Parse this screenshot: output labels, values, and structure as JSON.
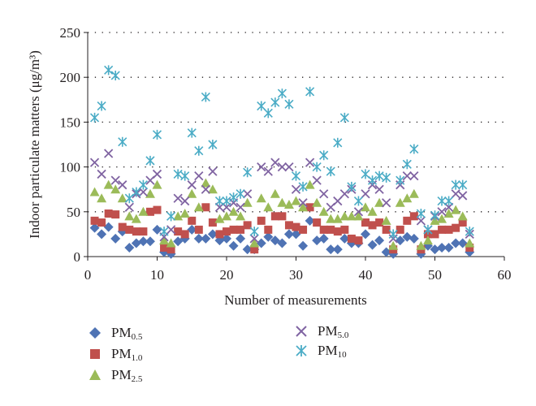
{
  "chart_data": {
    "type": "scatter",
    "xlabel": "Number of measurements",
    "ylabel": "Indoor particulate matters (μg/m³)",
    "xlim": [
      0,
      60
    ],
    "ylim": [
      0,
      250
    ],
    "xticks": [
      "0",
      "10",
      "20",
      "30",
      "40",
      "50",
      "60"
    ],
    "yticks": [
      "0",
      "50",
      "100",
      "150",
      "200",
      "250"
    ],
    "grid": "horizontal dotted",
    "legend_position": "bottom",
    "series": [
      {
        "name": "PM0.5",
        "label_base": "PM",
        "label_sub": "0.5",
        "marker": "diamond",
        "color": "#4f73b4",
        "x": [
          1,
          2,
          3,
          4,
          5,
          6,
          7,
          8,
          9,
          10,
          11,
          12,
          13,
          14,
          15,
          16,
          17,
          18,
          19,
          20,
          21,
          22,
          23,
          24,
          25,
          26,
          27,
          28,
          29,
          30,
          31,
          32,
          33,
          34,
          35,
          36,
          37,
          38,
          39,
          40,
          41,
          42,
          43,
          44,
          45,
          46,
          47,
          48,
          49,
          50,
          51,
          52,
          53,
          54,
          55
        ],
        "y": [
          32,
          25,
          33,
          20,
          28,
          10,
          15,
          17,
          17,
          30,
          5,
          3,
          17,
          20,
          30,
          20,
          20,
          25,
          18,
          20,
          12,
          20,
          8,
          8,
          15,
          22,
          18,
          15,
          25,
          25,
          12,
          40,
          18,
          20,
          8,
          8,
          20,
          15,
          15,
          25,
          13,
          18,
          5,
          3,
          18,
          22,
          20,
          3,
          12,
          8,
          10,
          10,
          15,
          15,
          5
        ]
      },
      {
        "name": "PM1.0",
        "label_base": "PM",
        "label_sub": "1.0",
        "marker": "square",
        "color": "#c0504d",
        "x": [
          1,
          2,
          3,
          4,
          5,
          6,
          7,
          8,
          9,
          10,
          11,
          12,
          13,
          14,
          15,
          16,
          17,
          18,
          19,
          20,
          21,
          22,
          23,
          24,
          25,
          26,
          27,
          28,
          29,
          30,
          31,
          32,
          33,
          34,
          35,
          36,
          37,
          38,
          39,
          40,
          41,
          42,
          43,
          44,
          45,
          46,
          47,
          48,
          49,
          50,
          51,
          52,
          53,
          54,
          55
        ],
        "y": [
          40,
          38,
          48,
          47,
          33,
          30,
          28,
          28,
          50,
          52,
          10,
          8,
          28,
          25,
          40,
          30,
          55,
          38,
          25,
          28,
          30,
          30,
          35,
          8,
          40,
          30,
          45,
          45,
          35,
          33,
          30,
          55,
          38,
          30,
          30,
          28,
          30,
          20,
          18,
          38,
          35,
          38,
          30,
          8,
          30,
          40,
          45,
          8,
          25,
          25,
          30,
          30,
          32,
          38,
          10
        ]
      },
      {
        "name": "PM2.5",
        "label_base": "PM",
        "label_sub": "2.5",
        "marker": "triangle",
        "color": "#9bbb59",
        "x": [
          1,
          2,
          3,
          4,
          5,
          6,
          7,
          8,
          9,
          10,
          11,
          12,
          13,
          14,
          15,
          16,
          17,
          18,
          19,
          20,
          21,
          22,
          23,
          24,
          25,
          26,
          27,
          28,
          29,
          30,
          31,
          32,
          33,
          34,
          35,
          36,
          37,
          38,
          39,
          40,
          41,
          42,
          43,
          44,
          45,
          46,
          47,
          48,
          49,
          50,
          51,
          52,
          53,
          54,
          55
        ],
        "y": [
          72,
          65,
          80,
          75,
          65,
          45,
          42,
          50,
          70,
          80,
          18,
          15,
          45,
          48,
          70,
          55,
          82,
          75,
          42,
          45,
          50,
          45,
          60,
          15,
          65,
          55,
          70,
          60,
          58,
          62,
          55,
          80,
          60,
          50,
          42,
          42,
          45,
          45,
          45,
          55,
          50,
          60,
          40,
          12,
          60,
          65,
          70,
          12,
          18,
          40,
          42,
          48,
          52,
          45,
          15
        ]
      },
      {
        "name": "PM5.0",
        "label_base": "PM",
        "label_sub": "5.0",
        "marker": "x",
        "color": "#8064a2",
        "x": [
          1,
          2,
          3,
          4,
          5,
          6,
          7,
          8,
          9,
          10,
          11,
          12,
          13,
          14,
          15,
          16,
          17,
          18,
          19,
          20,
          21,
          22,
          23,
          24,
          25,
          26,
          27,
          28,
          29,
          30,
          31,
          32,
          33,
          34,
          35,
          36,
          37,
          38,
          39,
          40,
          41,
          42,
          43,
          44,
          45,
          46,
          47,
          48,
          49,
          50,
          51,
          52,
          53,
          54,
          55
        ],
        "y": [
          105,
          92,
          115,
          85,
          80,
          55,
          70,
          72,
          85,
          92,
          22,
          30,
          65,
          62,
          80,
          90,
          75,
          95,
          55,
          55,
          60,
          55,
          70,
          20,
          100,
          95,
          105,
          100,
          100,
          75,
          60,
          105,
          85,
          70,
          55,
          62,
          70,
          75,
          50,
          70,
          80,
          75,
          60,
          20,
          80,
          90,
          90,
          40,
          30,
          45,
          50,
          55,
          70,
          68,
          25
        ]
      },
      {
        "name": "PM10",
        "label_base": "PM",
        "label_sub": "10",
        "marker": "asterisk",
        "color": "#4bacc6",
        "x": [
          1,
          2,
          3,
          4,
          5,
          6,
          7,
          8,
          9,
          10,
          11,
          12,
          13,
          14,
          15,
          16,
          17,
          18,
          19,
          20,
          21,
          22,
          23,
          24,
          25,
          26,
          27,
          28,
          29,
          30,
          31,
          32,
          33,
          34,
          35,
          36,
          37,
          38,
          39,
          40,
          41,
          42,
          43,
          44,
          45,
          46,
          47,
          48,
          49,
          50,
          51,
          52,
          53,
          54,
          55
        ],
        "y": [
          155,
          168,
          208,
          202,
          128,
          65,
          72,
          80,
          107,
          136,
          28,
          45,
          92,
          90,
          138,
          118,
          178,
          125,
          62,
          62,
          66,
          70,
          94,
          28,
          168,
          160,
          172,
          182,
          170,
          90,
          78,
          184,
          100,
          113,
          95,
          127,
          155,
          78,
          62,
          92,
          85,
          90,
          88,
          25,
          85,
          103,
          120,
          48,
          30,
          46,
          62,
          62,
          80,
          80,
          28
        ]
      }
    ]
  },
  "legend": {
    "items": [
      {
        "base": "PM",
        "sub": "0.5"
      },
      {
        "base": "PM",
        "sub": "1.0"
      },
      {
        "base": "PM",
        "sub": "2.5"
      },
      {
        "base": "PM",
        "sub": "5.0"
      },
      {
        "base": "PM",
        "sub": "10"
      }
    ]
  }
}
